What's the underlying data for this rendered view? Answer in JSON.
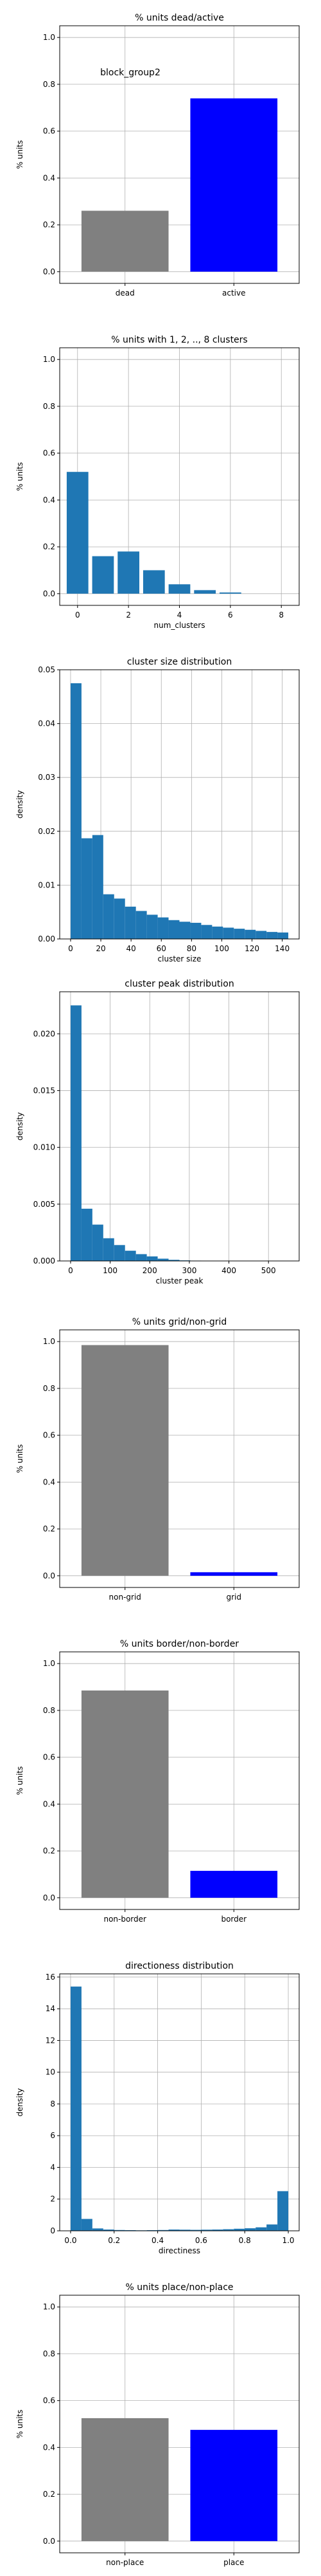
{
  "figure": {
    "suptitle": ""
  },
  "colors": {
    "grey": "#808080",
    "blue": "#0000ff",
    "hist": "#1f77b4",
    "grid": "#b0b0b0"
  },
  "chart_data": [
    {
      "type": "bar",
      "title": "% units dead/active",
      "annotation": "block_group2",
      "xlabel": "",
      "ylabel": "% units",
      "categories": [
        "dead",
        "active"
      ],
      "values": [
        0.26,
        0.74
      ],
      "bar_colors": [
        "#808080",
        "#0000ff"
      ],
      "ylim": [
        -0.05,
        1.05
      ],
      "yticks": [
        0.0,
        0.2,
        0.4,
        0.6,
        0.8,
        1.0
      ],
      "ytick_labels": [
        "0.0",
        "0.2",
        "0.4",
        "0.6",
        "0.8",
        "1.0"
      ],
      "grid": true
    },
    {
      "type": "bar",
      "title": "% units with 1, 2, .., 8 clusters",
      "xlabel": "num_clusters",
      "ylabel": "% units",
      "x": [
        0,
        1,
        2,
        3,
        4,
        5,
        6,
        7,
        8
      ],
      "values": [
        0.52,
        0.16,
        0.18,
        0.1,
        0.04,
        0.015,
        0.005,
        0.0,
        0.0
      ],
      "bar_width": 0.85,
      "xlim": [
        -0.7,
        8.7
      ],
      "xticks": [
        0,
        2,
        4,
        6,
        8
      ],
      "xtick_labels": [
        "0",
        "2",
        "4",
        "6",
        "8"
      ],
      "ylim": [
        -0.05,
        1.05
      ],
      "yticks": [
        0.0,
        0.2,
        0.4,
        0.6,
        0.8,
        1.0
      ],
      "ytick_labels": [
        "0.0",
        "0.2",
        "0.4",
        "0.6",
        "0.8",
        "1.0"
      ],
      "grid": true
    },
    {
      "type": "histogram",
      "title": "cluster size distribution",
      "xlabel": "cluster size",
      "ylabel": "density",
      "bin_start": 0,
      "bin_width": 7.2,
      "values": [
        0.0475,
        0.0187,
        0.0193,
        0.0083,
        0.0075,
        0.006,
        0.0052,
        0.0045,
        0.004,
        0.0035,
        0.0032,
        0.003,
        0.0026,
        0.0023,
        0.0021,
        0.0019,
        0.0017,
        0.0015,
        0.0013,
        0.0012
      ],
      "xlim": [
        -7.2,
        151.2
      ],
      "xticks": [
        0,
        20,
        40,
        60,
        80,
        100,
        120,
        140
      ],
      "xtick_labels": [
        "0",
        "20",
        "40",
        "60",
        "80",
        "100",
        "120",
        "140"
      ],
      "ylim": [
        0,
        0.05
      ],
      "yticks": [
        0.0,
        0.01,
        0.02,
        0.03,
        0.04,
        0.05
      ],
      "ytick_labels": [
        "0.00",
        "0.01",
        "0.02",
        "0.03",
        "0.04",
        "0.05"
      ],
      "grid": true
    },
    {
      "type": "histogram",
      "title": "cluster peak distribution",
      "xlabel": "cluster peak",
      "ylabel": "density",
      "bin_start": 0,
      "bin_width": 27.5,
      "values": [
        0.0225,
        0.0046,
        0.0032,
        0.002,
        0.0014,
        0.0009,
        0.0006,
        0.0004,
        0.0002,
        0.0001,
        5e-05,
        3e-05,
        2e-05,
        1e-05,
        0,
        0,
        0,
        0,
        0,
        1e-05
      ],
      "xlim": [
        -27.5,
        577.5
      ],
      "xticks": [
        0,
        100,
        200,
        300,
        400,
        500
      ],
      "xtick_labels": [
        "0",
        "100",
        "200",
        "300",
        "400",
        "500"
      ],
      "ylim": [
        0,
        0.0237
      ],
      "yticks": [
        0.0,
        0.005,
        0.01,
        0.015,
        0.02
      ],
      "ytick_labels": [
        "0.000",
        "0.005",
        "0.010",
        "0.015",
        "0.020"
      ],
      "grid": true
    },
    {
      "type": "bar",
      "title": "% units grid/non-grid",
      "xlabel": "",
      "ylabel": "% units",
      "categories": [
        "non-grid",
        "grid"
      ],
      "values": [
        0.985,
        0.015
      ],
      "bar_colors": [
        "#808080",
        "#0000ff"
      ],
      "ylim": [
        -0.05,
        1.05
      ],
      "yticks": [
        0.0,
        0.2,
        0.4,
        0.6,
        0.8,
        1.0
      ],
      "ytick_labels": [
        "0.0",
        "0.2",
        "0.4",
        "0.6",
        "0.8",
        "1.0"
      ],
      "grid": true
    },
    {
      "type": "bar",
      "title": "% units border/non-border",
      "xlabel": "",
      "ylabel": "% units",
      "categories": [
        "non-border",
        "border"
      ],
      "values": [
        0.885,
        0.115
      ],
      "bar_colors": [
        "#808080",
        "#0000ff"
      ],
      "ylim": [
        -0.05,
        1.05
      ],
      "yticks": [
        0.0,
        0.2,
        0.4,
        0.6,
        0.8,
        1.0
      ],
      "ytick_labels": [
        "0.0",
        "0.2",
        "0.4",
        "0.6",
        "0.8",
        "1.0"
      ],
      "grid": true
    },
    {
      "type": "histogram",
      "title": "directioness distribution",
      "xlabel": "directiness",
      "ylabel": "density",
      "bin_start": 0,
      "bin_width": 0.05,
      "values": [
        15.4,
        0.75,
        0.15,
        0.08,
        0.05,
        0.04,
        0.03,
        0.04,
        0.05,
        0.08,
        0.07,
        0.06,
        0.07,
        0.08,
        0.1,
        0.13,
        0.16,
        0.22,
        0.4,
        2.5
      ],
      "xlim": [
        -0.05,
        1.05
      ],
      "xticks": [
        0.0,
        0.2,
        0.4,
        0.6,
        0.8,
        1.0
      ],
      "xtick_labels": [
        "0.0",
        "0.2",
        "0.4",
        "0.6",
        "0.8",
        "1.0"
      ],
      "ylim": [
        0,
        16.2
      ],
      "yticks": [
        0,
        2,
        4,
        6,
        8,
        10,
        12,
        14,
        16
      ],
      "ytick_labels": [
        "0",
        "2",
        "4",
        "6",
        "8",
        "10",
        "12",
        "14",
        "16"
      ],
      "grid": true
    },
    {
      "type": "bar",
      "title": "% units place/non-place",
      "xlabel": "",
      "ylabel": "% units",
      "categories": [
        "non-place",
        "place"
      ],
      "values": [
        0.525,
        0.475
      ],
      "bar_colors": [
        "#808080",
        "#0000ff"
      ],
      "ylim": [
        -0.05,
        1.05
      ],
      "yticks": [
        0.0,
        0.2,
        0.4,
        0.6,
        0.8,
        1.0
      ],
      "ytick_labels": [
        "0.0",
        "0.2",
        "0.4",
        "0.6",
        "0.8",
        "1.0"
      ],
      "grid": true
    }
  ]
}
